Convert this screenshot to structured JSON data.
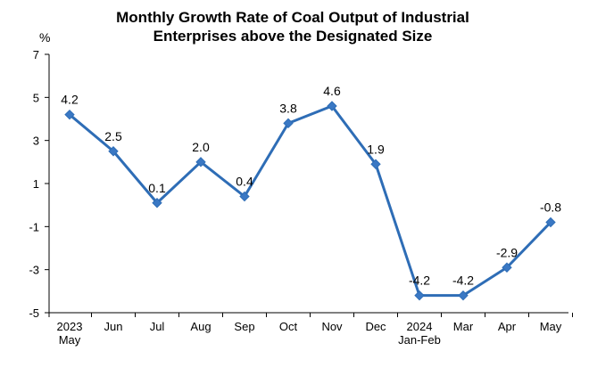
{
  "chart_data": {
    "type": "line",
    "title_lines": [
      "Monthly Growth Rate of Coal Output of Industrial",
      "Enterprises above the Designated Size"
    ],
    "unit": "%",
    "categories": [
      [
        "2023",
        "May"
      ],
      [
        "Jun"
      ],
      [
        "Jul"
      ],
      [
        "Aug"
      ],
      [
        "Sep"
      ],
      [
        "Oct"
      ],
      [
        "Nov"
      ],
      [
        "Dec"
      ],
      [
        "2024",
        "Jan-Feb"
      ],
      [
        "Mar"
      ],
      [
        "Apr"
      ],
      [
        "May"
      ]
    ],
    "series": [
      {
        "name": "Growth Rate",
        "values": [
          4.2,
          2.5,
          0.1,
          2.0,
          0.4,
          3.8,
          4.6,
          1.9,
          -4.2,
          -4.2,
          -2.9,
          -0.8
        ]
      }
    ],
    "data_labels": [
      "4.2",
      "2.5",
      "0.1",
      "2.0",
      "0.4",
      "3.8",
      "4.6",
      "1.9",
      "-4.2",
      "-4.2",
      "-2.9",
      "-0.8"
    ],
    "yticks": [
      7,
      5,
      3,
      1,
      -1,
      -3,
      -5
    ],
    "ylim": [
      -5,
      7
    ],
    "grid": false,
    "colors": {
      "line": "#2E6DB6",
      "marker": "#3A78C4",
      "axis": "#000000"
    }
  }
}
